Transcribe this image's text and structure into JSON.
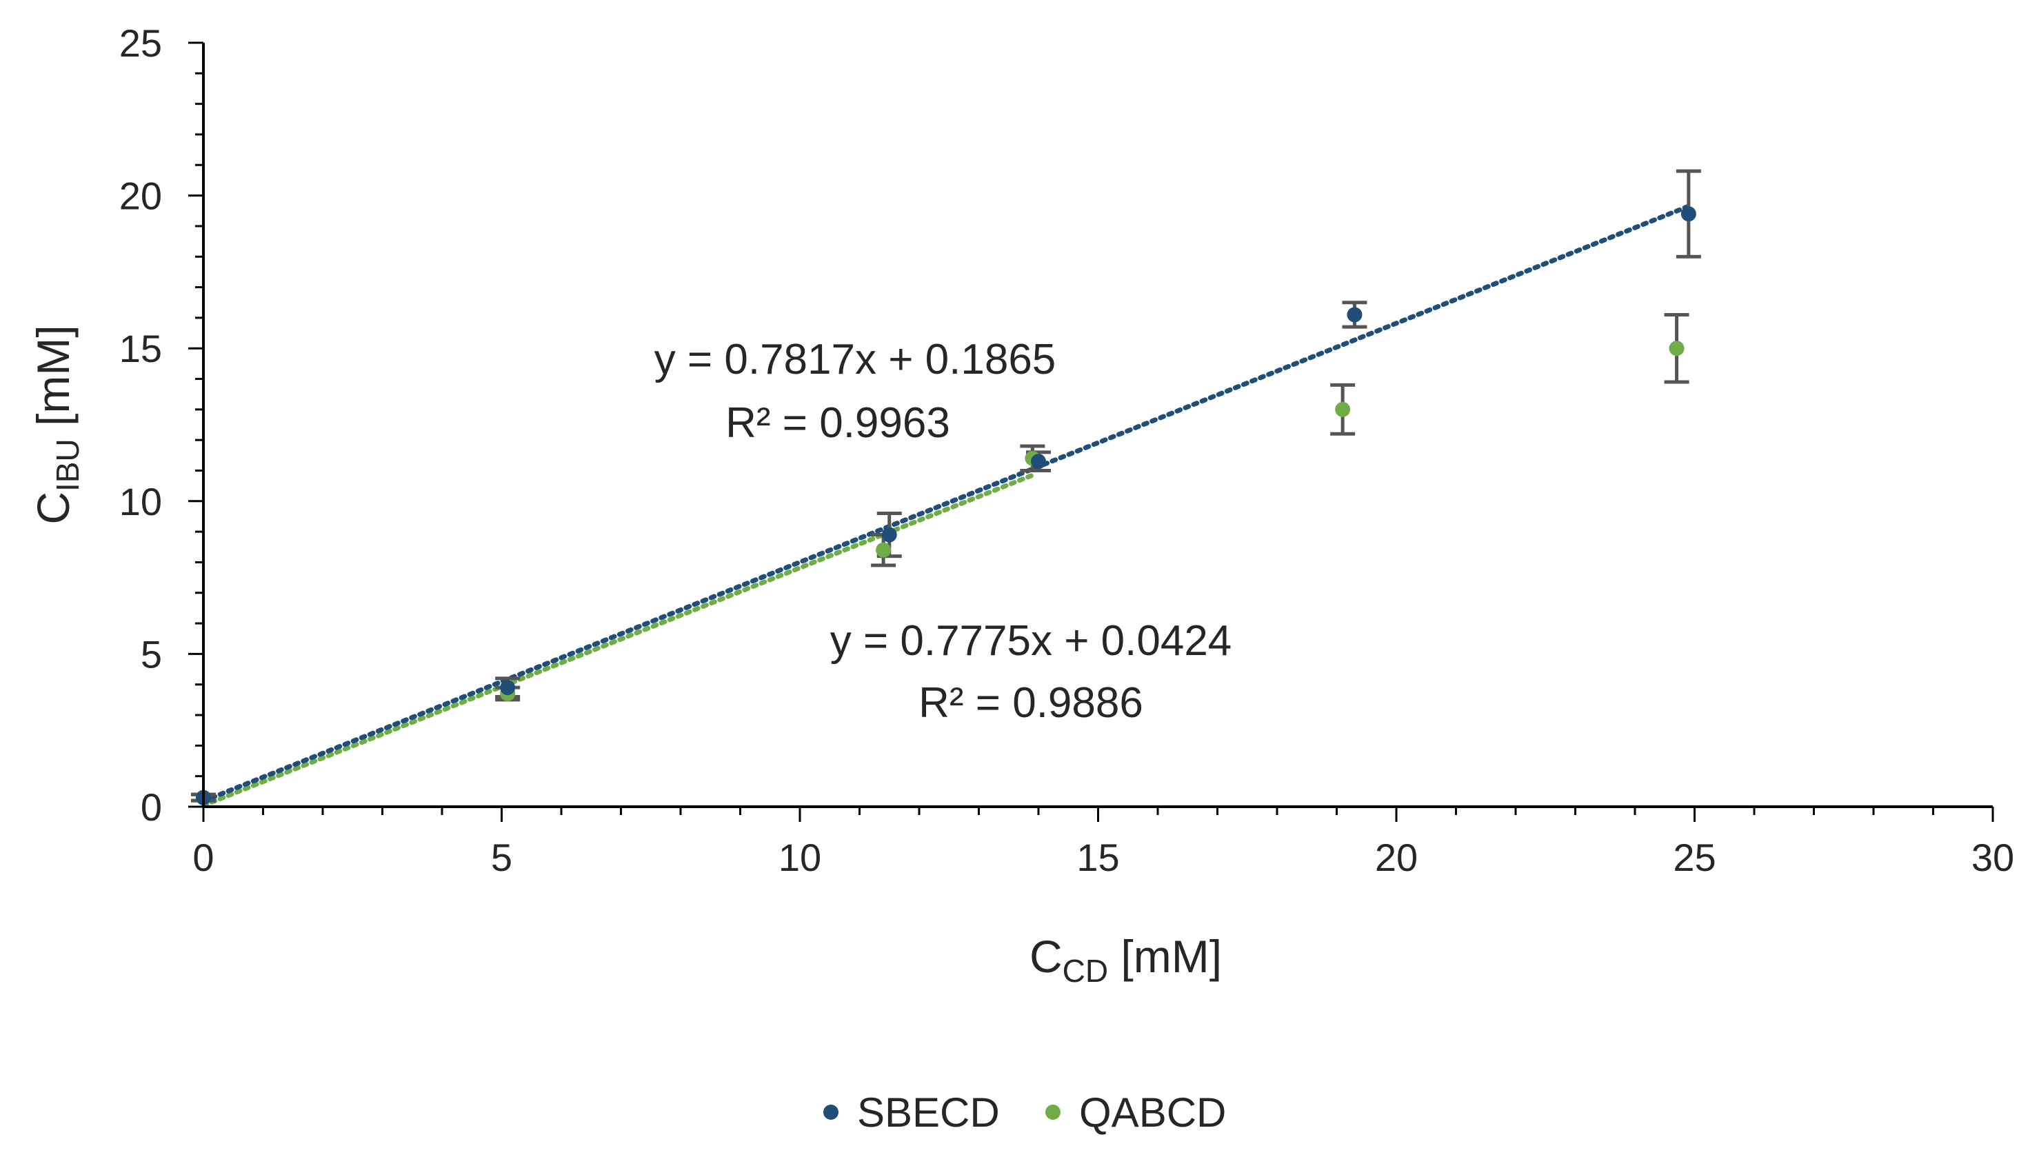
{
  "chart_data": {
    "type": "scatter",
    "title": "",
    "xlabel": {
      "main": "C",
      "sub": "CD",
      "unit": " [mM]"
    },
    "ylabel": {
      "main": "C",
      "sub": "IBU",
      "unit": " [mM]"
    },
    "xlim": [
      0,
      30
    ],
    "ylim": [
      0,
      25
    ],
    "x_ticks": [
      0,
      5,
      10,
      15,
      20,
      25,
      30
    ],
    "y_ticks": [
      0,
      5,
      10,
      15,
      20,
      25
    ],
    "x_tick_labels": [
      "0",
      "5",
      "10",
      "15",
      "20",
      "25",
      "30"
    ],
    "y_tick_labels": [
      "0",
      "5",
      "10",
      "15",
      "20",
      "25"
    ],
    "grid": false,
    "legend_position": "bottom-center",
    "series": [
      {
        "name": "SBECD",
        "color": "#1f4e79",
        "x": [
          0,
          5.1,
          11.5,
          14.0,
          19.3,
          24.9
        ],
        "y": [
          0.3,
          3.9,
          8.9,
          11.3,
          16.1,
          19.4
        ],
        "err": [
          0.1,
          0.3,
          0.7,
          0.3,
          0.4,
          1.4
        ],
        "trendline": {
          "slope": 0.7817,
          "intercept": 0.1865,
          "x_range": [
            0,
            24.9
          ]
        },
        "equation": "y = 0.7817x + 0.1865",
        "r2": "R² = 0.9963"
      },
      {
        "name": "QABCD",
        "color": "#70ad47",
        "x": [
          0,
          5.1,
          11.4,
          13.9,
          19.1,
          24.7
        ],
        "y": [
          0.3,
          3.7,
          8.4,
          11.4,
          13.0,
          15.0
        ],
        "err": [
          0.1,
          0.2,
          0.5,
          0.4,
          0.8,
          1.1
        ],
        "trendline": {
          "slope": 0.7775,
          "intercept": 0.0424,
          "x_range": [
            0,
            13.9
          ]
        },
        "equation": "y = 0.7775x + 0.0424",
        "r2": "R² = 0.9886"
      }
    ]
  }
}
